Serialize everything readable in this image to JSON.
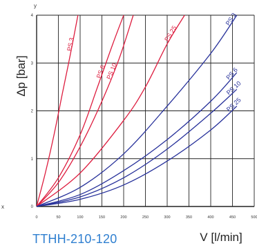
{
  "caption": "TTHH-210-120",
  "chart_data": {
    "type": "line",
    "xlabel": "V [l/min]",
    "ylabel": "Δp [bar]",
    "x_axis_letter": "x",
    "y_axis_letter": "y",
    "xlim": [
      0,
      500
    ],
    "ylim": [
      0,
      4
    ],
    "grid": true,
    "x_ticks": [
      0,
      50,
      100,
      150,
      200,
      250,
      300,
      350,
      400,
      450,
      500
    ],
    "y_ticks": [
      0,
      1,
      2,
      3,
      4
    ],
    "colors": {
      "red": "#dd1c3e",
      "blue": "#26309a",
      "grid": "#222222"
    },
    "series": [
      {
        "name": "PS 3",
        "color": "#dd1c3e",
        "label_at": 78,
        "points": [
          [
            0,
            0
          ],
          [
            20,
            0.7
          ],
          [
            40,
            1.5
          ],
          [
            60,
            2.4
          ],
          [
            78,
            3.2
          ],
          [
            95,
            4.0
          ]
        ]
      },
      {
        "name": "PS 6",
        "color": "#dd1c3e",
        "label_at": 145,
        "points": [
          [
            0,
            0
          ],
          [
            50,
            0.6
          ],
          [
            100,
            1.5
          ],
          [
            140,
            2.5
          ],
          [
            175,
            3.4
          ],
          [
            200,
            4.0
          ]
        ]
      },
      {
        "name": "PS 10",
        "color": "#dd1c3e",
        "label_at": 168,
        "points": [
          [
            0,
            0
          ],
          [
            50,
            0.5
          ],
          [
            100,
            1.25
          ],
          [
            150,
            2.2
          ],
          [
            190,
            3.1
          ],
          [
            222,
            4.0
          ]
        ]
      },
      {
        "name": "PS 25",
        "color": "#dd1c3e",
        "label_at": 300,
        "points": [
          [
            0,
            0
          ],
          [
            100,
            0.7
          ],
          [
            200,
            1.8
          ],
          [
            250,
            2.5
          ],
          [
            300,
            3.4
          ],
          [
            340,
            4.0
          ]
        ]
      },
      {
        "name": "PS 3",
        "color": "#26309a",
        "label_at": 440,
        "points": [
          [
            0,
            0
          ],
          [
            100,
            0.4
          ],
          [
            200,
            1.1
          ],
          [
            300,
            2.1
          ],
          [
            400,
            3.2
          ],
          [
            460,
            4.0
          ]
        ]
      },
      {
        "name": "PS 6",
        "color": "#26309a",
        "label_at": 440,
        "points": [
          [
            0,
            0
          ],
          [
            100,
            0.25
          ],
          [
            200,
            0.75
          ],
          [
            300,
            1.4
          ],
          [
            400,
            2.2
          ],
          [
            460,
            2.8
          ]
        ]
      },
      {
        "name": "PS 10",
        "color": "#26309a",
        "label_at": 440,
        "points": [
          [
            0,
            0
          ],
          [
            100,
            0.2
          ],
          [
            200,
            0.6
          ],
          [
            300,
            1.2
          ],
          [
            400,
            1.95
          ],
          [
            460,
            2.45
          ]
        ]
      },
      {
        "name": "PS 25",
        "color": "#26309a",
        "label_at": 440,
        "points": [
          [
            0,
            0
          ],
          [
            100,
            0.15
          ],
          [
            200,
            0.45
          ],
          [
            300,
            0.95
          ],
          [
            400,
            1.6
          ],
          [
            460,
            2.1
          ]
        ]
      }
    ]
  }
}
